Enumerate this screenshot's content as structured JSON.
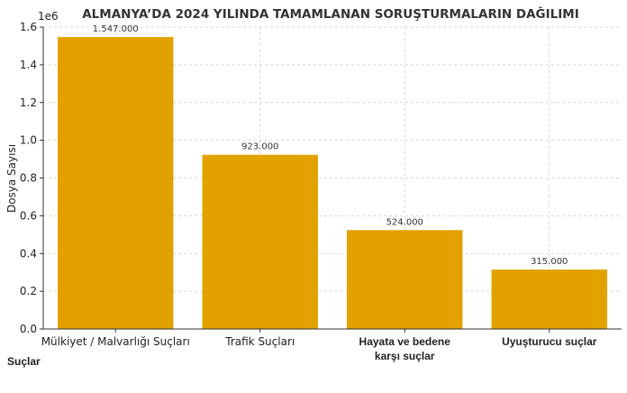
{
  "chart_data": {
    "type": "bar",
    "title": "ALMANYA’DA 2024 YILINDA TAMAMLANAN SORUŞTURMALARIN DAĞILIMI",
    "xlabel": "Suçlar",
    "ylabel": "Dosya Sayısı",
    "scale_note": "1e6",
    "ylim": [
      0,
      1.6
    ],
    "yticks": [
      "0.0",
      "0.2",
      "0.4",
      "0.6",
      "0.8",
      "1.0",
      "1.2",
      "1.4",
      "1.6"
    ],
    "grid": true,
    "categories": [
      [
        "Mülkiyet / Malvarlığı Suçları"
      ],
      [
        "Trafik Suçları"
      ],
      [
        "Hayata ve bedene",
        "karşı suçlar"
      ],
      [
        "Uyuşturucu suçlar"
      ]
    ],
    "values": [
      1547000,
      923000,
      524000,
      315000
    ],
    "value_labels": [
      "1.547.000",
      "923.000",
      "524.000",
      "315.000"
    ],
    "bar_color": "#e3a100"
  }
}
